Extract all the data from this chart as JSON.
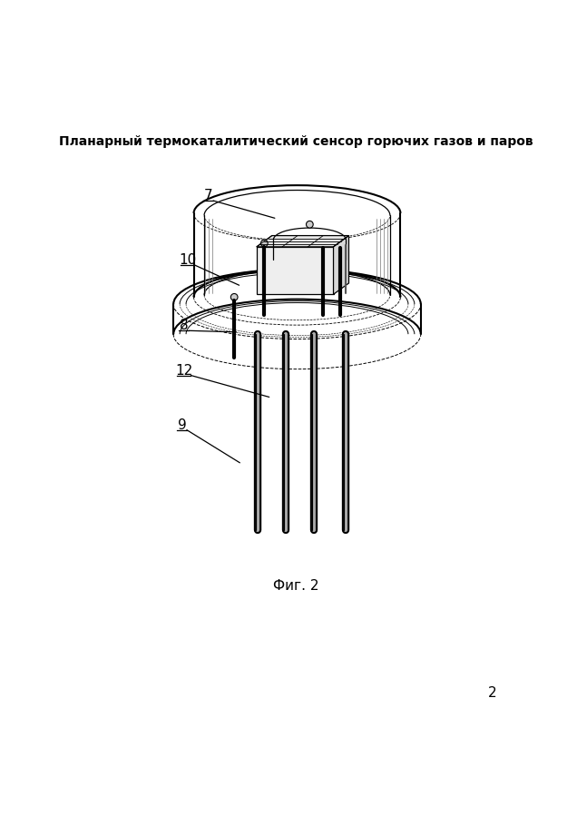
{
  "title": "Планарный термокаталитический сенсор горючих газов и паров",
  "fig_label": "Фиг. 2",
  "page_number": "2",
  "background_color": "#ffffff",
  "line_color": "#000000",
  "labels_data": [
    [
      "7",
      193,
      140,
      288,
      172
    ],
    [
      "10",
      163,
      232,
      237,
      268
    ],
    [
      "8",
      158,
      326,
      233,
      335
    ],
    [
      "12",
      158,
      390,
      280,
      428
    ],
    [
      "9",
      155,
      468,
      238,
      522
    ]
  ]
}
